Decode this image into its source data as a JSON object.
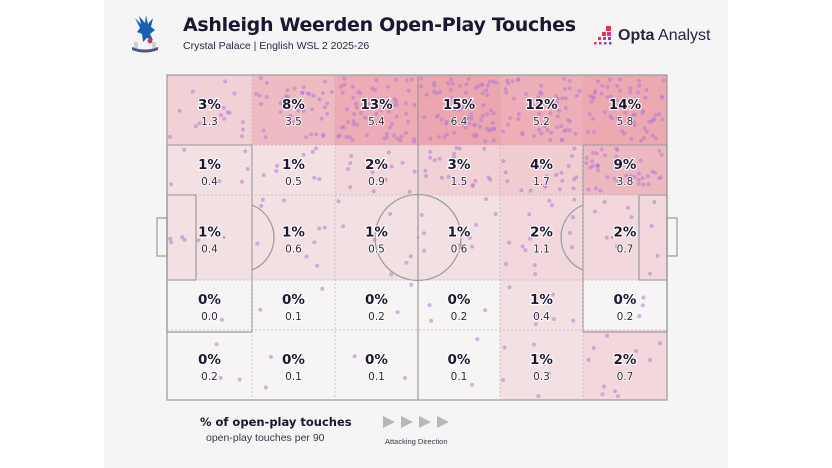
{
  "header": {
    "title": "Ashleigh Weerden Open-Play Touches",
    "subtitle": "Crystal Palace | English WSL 2 2025-26",
    "club_crest_icon": "crystal-palace-crest-icon",
    "brand": {
      "bold": "Opta",
      "regular": " Analyst",
      "icon": "opta-analyst-logo-icon"
    }
  },
  "legend": {
    "primary": "% of open-play touches",
    "secondary": "open-play touches per 90",
    "direction_label": "Attacking Direction",
    "direction_icon": "play-arrow-icon",
    "arrow_count": 4
  },
  "colors": {
    "panel_bg": "#f5f5f5",
    "line": "#9a9a9a",
    "dot": "#b07ccf",
    "text_dark": "#1c1630",
    "heat_low": "#f6f4f5",
    "heat_high": "#eca6b0"
  },
  "chart_data": {
    "type": "heatmap",
    "title": "Ashleigh Weerden Open-Play Touches",
    "subtitle": "Crystal Palace | English WSL 2 2025-26",
    "description": "Football pitch divided into 5 rows x 6 columns; attacking direction left-to-right. Each zone shows % of open-play touches and touches per 90.",
    "rows": 5,
    "cols": 6,
    "cells": [
      [
        {
          "pct": "3%",
          "p90": "1.3"
        },
        {
          "pct": "8%",
          "p90": "3.5"
        },
        {
          "pct": "13%",
          "p90": "5.4"
        },
        {
          "pct": "15%",
          "p90": "6.4"
        },
        {
          "pct": "12%",
          "p90": "5.2"
        },
        {
          "pct": "14%",
          "p90": "5.8"
        }
      ],
      [
        {
          "pct": "1%",
          "p90": "0.4"
        },
        {
          "pct": "1%",
          "p90": "0.5"
        },
        {
          "pct": "2%",
          "p90": "0.9"
        },
        {
          "pct": "3%",
          "p90": "1.5"
        },
        {
          "pct": "4%",
          "p90": "1.7"
        },
        {
          "pct": "9%",
          "p90": "3.8"
        }
      ],
      [
        {
          "pct": "1%",
          "p90": "0.4"
        },
        {
          "pct": "1%",
          "p90": "0.6"
        },
        {
          "pct": "1%",
          "p90": "0.5"
        },
        {
          "pct": "1%",
          "p90": "0.6"
        },
        {
          "pct": "2%",
          "p90": "1.1"
        },
        {
          "pct": "2%",
          "p90": "0.7"
        }
      ],
      [
        {
          "pct": "0%",
          "p90": "0.0"
        },
        {
          "pct": "0%",
          "p90": "0.1"
        },
        {
          "pct": "0%",
          "p90": "0.2"
        },
        {
          "pct": "0%",
          "p90": "0.2"
        },
        {
          "pct": "1%",
          "p90": "0.4"
        },
        {
          "pct": "0%",
          "p90": "0.2"
        }
      ],
      [
        {
          "pct": "0%",
          "p90": "0.2"
        },
        {
          "pct": "0%",
          "p90": "0.1"
        },
        {
          "pct": "0%",
          "p90": "0.1"
        },
        {
          "pct": "0%",
          "p90": "0.1"
        },
        {
          "pct": "1%",
          "p90": "0.3"
        },
        {
          "pct": "2%",
          "p90": "0.7"
        }
      ]
    ],
    "legend": [
      "% of open-play touches",
      "open-play touches per 90"
    ],
    "direction": "Attacking Direction (left to right)"
  }
}
